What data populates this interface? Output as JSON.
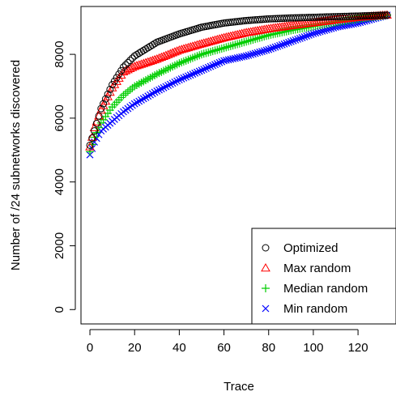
{
  "chart_data": {
    "type": "scatter",
    "title": "",
    "xlabel": "Trace",
    "ylabel": "Number of /24 subnetworks discovered",
    "xlim": [
      -4,
      137
    ],
    "ylim": [
      -450,
      9500
    ],
    "xticks": [
      0,
      20,
      40,
      60,
      80,
      100,
      120
    ],
    "yticks": [
      0,
      2000,
      4000,
      6000,
      8000
    ],
    "legend_position": "bottom-right",
    "grid": false,
    "n_traces": 134,
    "series": [
      {
        "name": "Optimized",
        "marker": "circle",
        "color": "#000000",
        "x": [
          0,
          2,
          5,
          10,
          15,
          20,
          30,
          40,
          50,
          60,
          70,
          80,
          90,
          100,
          110,
          120,
          133
        ],
        "y": [
          5150,
          5600,
          6300,
          7050,
          7600,
          7950,
          8380,
          8640,
          8850,
          8980,
          9060,
          9110,
          9140,
          9160,
          9180,
          9200,
          9230
        ]
      },
      {
        "name": "Max random",
        "marker": "triangle",
        "color": "#ff0000",
        "x": [
          0,
          2,
          5,
          10,
          15,
          20,
          30,
          40,
          50,
          60,
          70,
          80,
          90,
          100,
          110,
          120,
          133
        ],
        "y": [
          5100,
          5700,
          6250,
          6950,
          7450,
          7620,
          7850,
          8130,
          8330,
          8520,
          8680,
          8800,
          8900,
          8990,
          9080,
          9160,
          9230
        ]
      },
      {
        "name": "Median random",
        "marker": "plus",
        "color": "#00cd00",
        "x": [
          0,
          2,
          5,
          10,
          15,
          20,
          30,
          40,
          50,
          60,
          70,
          80,
          90,
          100,
          110,
          120,
          133
        ],
        "y": [
          4950,
          5400,
          5850,
          6350,
          6720,
          7000,
          7380,
          7720,
          8000,
          8200,
          8400,
          8600,
          8750,
          8880,
          9000,
          9110,
          9230
        ]
      },
      {
        "name": "Min random",
        "marker": "cross",
        "color": "#0000ff",
        "x": [
          0,
          2,
          5,
          10,
          15,
          20,
          30,
          40,
          50,
          60,
          70,
          80,
          90,
          100,
          110,
          120,
          133
        ],
        "y": [
          4850,
          5250,
          5600,
          5900,
          6200,
          6450,
          6850,
          7200,
          7500,
          7800,
          7950,
          8150,
          8400,
          8650,
          8850,
          8980,
          9230
        ]
      }
    ]
  }
}
